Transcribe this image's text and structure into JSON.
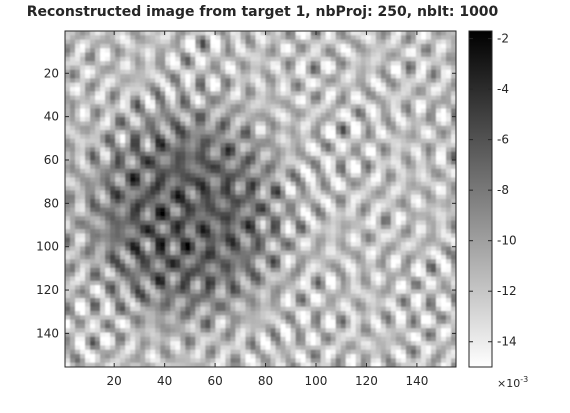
{
  "chart_data": [
    {
      "type": "heatmap",
      "title": "Reconstructed image from target 1, nbProj: 250, nbIt: 1000",
      "xlabel": "",
      "ylabel": "",
      "xlim": [
        0.5,
        155.5
      ],
      "ylim": [
        0.5,
        155.5
      ],
      "y_direction": "reversed",
      "colormap": "gray",
      "x_ticks": [
        20,
        40,
        60,
        80,
        100,
        120,
        140
      ],
      "y_ticks": [
        20,
        40,
        60,
        80,
        100,
        120,
        140
      ],
      "grid": false,
      "description_of_values": "oscillatory granular pattern; darker region at left-center, roughly x 15-85, y 35-135"
    },
    {
      "type": "colorbar",
      "orientation": "vertical",
      "placement": "right",
      "range": [
        -15,
        -1.7
      ],
      "ticks": [
        -2,
        -4,
        -6,
        -8,
        -10,
        -12,
        -14
      ],
      "exponent_label": "×10",
      "exponent": "-3",
      "colormap": "gray"
    }
  ]
}
